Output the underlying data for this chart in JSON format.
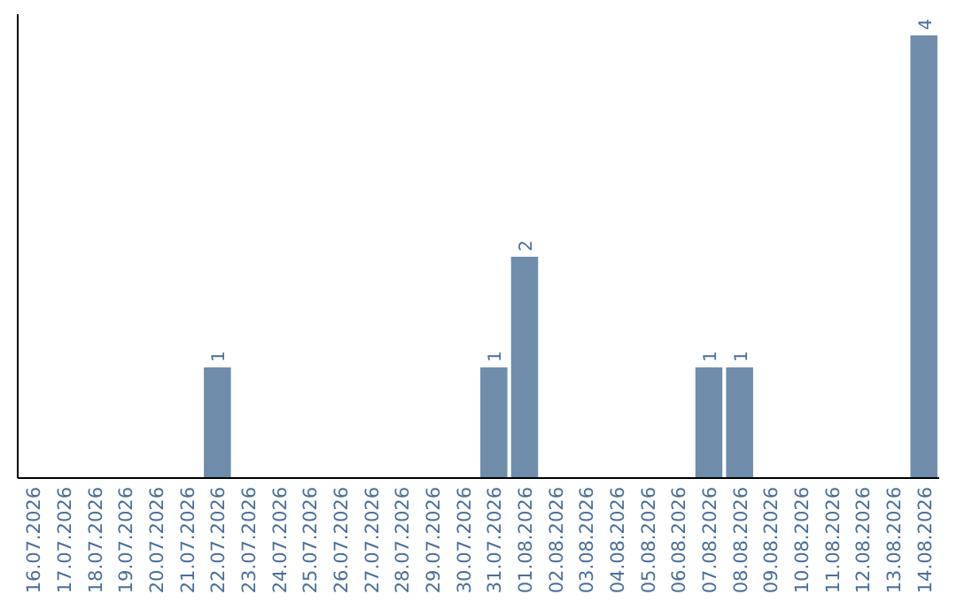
{
  "chart_data": {
    "type": "bar",
    "categories": [
      "16.07.2026",
      "17.07.2026",
      "18.07.2026",
      "19.07.2026",
      "20.07.2026",
      "21.07.2026",
      "22.07.2026",
      "23.07.2026",
      "24.07.2026",
      "25.07.2026",
      "26.07.2026",
      "27.07.2026",
      "28.07.2026",
      "29.07.2026",
      "30.07.2026",
      "31.07.2026",
      "01.08.2026",
      "02.08.2026",
      "03.08.2026",
      "04.08.2026",
      "05.08.2026",
      "06.08.2026",
      "07.08.2026",
      "08.08.2026",
      "09.08.2026",
      "10.08.2026",
      "11.08.2026",
      "12.08.2026",
      "13.08.2026",
      "14.08.2026"
    ],
    "values": [
      0,
      0,
      0,
      0,
      0,
      0,
      1,
      0,
      0,
      0,
      0,
      0,
      0,
      0,
      0,
      1,
      2,
      0,
      0,
      0,
      0,
      0,
      1,
      1,
      0,
      0,
      0,
      0,
      0,
      4
    ],
    "value_labels": [
      null,
      null,
      null,
      null,
      null,
      null,
      "1",
      null,
      null,
      null,
      null,
      null,
      null,
      null,
      null,
      "1",
      "2",
      null,
      null,
      null,
      null,
      null,
      "1",
      "1",
      null,
      null,
      null,
      null,
      null,
      "4"
    ],
    "color": "#6f8dab"
  }
}
